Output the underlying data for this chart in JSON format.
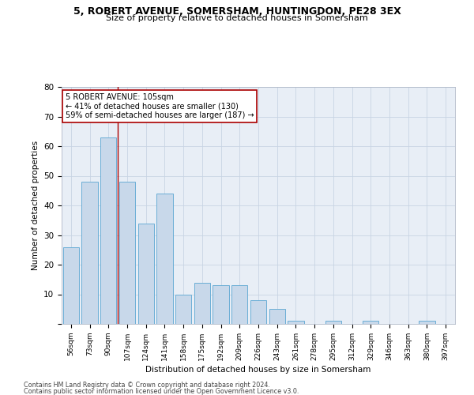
{
  "title_line1": "5, ROBERT AVENUE, SOMERSHAM, HUNTINGDON, PE28 3EX",
  "title_line2": "Size of property relative to detached houses in Somersham",
  "xlabel": "Distribution of detached houses by size in Somersham",
  "ylabel": "Number of detached properties",
  "categories": [
    "56sqm",
    "73sqm",
    "90sqm",
    "107sqm",
    "124sqm",
    "141sqm",
    "158sqm",
    "175sqm",
    "192sqm",
    "209sqm",
    "226sqm",
    "243sqm",
    "261sqm",
    "278sqm",
    "295sqm",
    "312sqm",
    "329sqm",
    "346sqm",
    "363sqm",
    "380sqm",
    "397sqm"
  ],
  "values": [
    26,
    48,
    63,
    48,
    34,
    44,
    10,
    14,
    13,
    13,
    8,
    5,
    1,
    0,
    1,
    0,
    1,
    0,
    0,
    1,
    0
  ],
  "bar_color": "#c8d8ea",
  "bar_edge_color": "#6baed6",
  "vline_x": 2.5,
  "vline_color": "#aa0000",
  "annotation_line1": "5 ROBERT AVENUE: 105sqm",
  "annotation_line2": "← 41% of detached houses are smaller (130)",
  "annotation_line3": "59% of semi-detached houses are larger (187) →",
  "annotation_box_color": "#ffffff",
  "annotation_box_edge_color": "#aa0000",
  "ylim": [
    0,
    80
  ],
  "yticks": [
    0,
    10,
    20,
    30,
    40,
    50,
    60,
    70,
    80
  ],
  "grid_color": "#c8d4e4",
  "background_color": "#e8eef6",
  "footer_line1": "Contains HM Land Registry data © Crown copyright and database right 2024.",
  "footer_line2": "Contains public sector information licensed under the Open Government Licence v3.0."
}
